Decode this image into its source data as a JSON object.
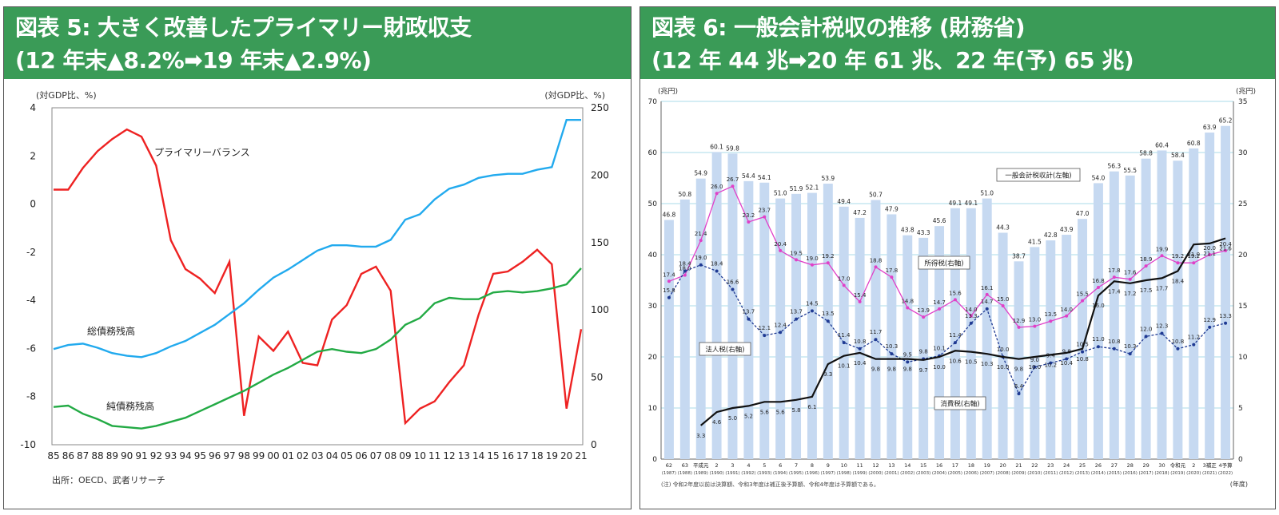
{
  "panel1": {
    "title_line1": "図表 5: 大きく改善したプライマリー財政収支",
    "title_line2": "(12 年末▲8.2%➡19 年末▲2.9%)",
    "left_unit": "(対GDP比、%)",
    "right_unit": "(対GDP比、%)",
    "source": "出所：OECD、武者リサーチ"
  },
  "panel2": {
    "title_line1": "図表 6: 一般会計税収の推移 (財務省)",
    "title_line2": "(12 年 44 兆➡20 年 61 兆、22 年(予) 65 兆)",
    "left_unit": "(兆円)",
    "right_unit": "(兆円)",
    "year_label": "(年度)",
    "footnote": "(注) 令和2年度以前は決算額、令和3年度は補正後予算額、令和4年度は予算額である。"
  },
  "chart_data": [
    {
      "type": "line",
      "x": [
        "85",
        "86",
        "87",
        "88",
        "89",
        "90",
        "91",
        "92",
        "93",
        "94",
        "95",
        "96",
        "97",
        "98",
        "99",
        "00",
        "01",
        "02",
        "03",
        "04",
        "05",
        "06",
        "07",
        "08",
        "09",
        "10",
        "11",
        "12",
        "13",
        "14",
        "15",
        "16",
        "17",
        "18",
        "19",
        "20",
        "21"
      ],
      "ylim_left": [
        -10,
        4
      ],
      "yticks_left": [
        4,
        2,
        0,
        -2,
        -4,
        -6,
        -8,
        -10
      ],
      "ylim_right": [
        0,
        250
      ],
      "yticks_right": [
        250,
        200,
        150,
        100,
        50,
        0
      ],
      "series": [
        {
          "name": "プライマリーバランス",
          "axis": "left",
          "color": "#ee2222",
          "values": [
            0.6,
            0.6,
            1.5,
            2.2,
            2.7,
            3.1,
            2.8,
            1.6,
            -1.5,
            -2.7,
            -3.1,
            -3.7,
            -2.4,
            -8.8,
            -5.5,
            -6.1,
            -5.3,
            -6.6,
            -6.7,
            -4.8,
            -4.2,
            -2.9,
            -2.6,
            -3.6,
            -9.1,
            -8.5,
            -8.2,
            -7.4,
            -6.7,
            -4.6,
            -2.9,
            -2.8,
            -2.4,
            -1.9,
            -2.5,
            -8.5,
            -5.2
          ]
        },
        {
          "name": "総債務残高",
          "axis": "right",
          "color": "#22aaee",
          "values": [
            71,
            74,
            75,
            72,
            68,
            66,
            65,
            68,
            73,
            77,
            83,
            89,
            97,
            105,
            115,
            124,
            130,
            137,
            144,
            148,
            148,
            147,
            147,
            152,
            167,
            171,
            182,
            190,
            193,
            198,
            200,
            201,
            201,
            204,
            206,
            241,
            241
          ]
        },
        {
          "name": "純債務残高",
          "axis": "right",
          "color": "#22aa44",
          "values": [
            28,
            29,
            23,
            19,
            14,
            13,
            12,
            14,
            17,
            20,
            25,
            30,
            35,
            40,
            46,
            52,
            57,
            63,
            69,
            71,
            69,
            68,
            71,
            78,
            89,
            94,
            105,
            109,
            108,
            108,
            113,
            114,
            113,
            114,
            116,
            119,
            131
          ]
        }
      ]
    },
    {
      "type": "bar",
      "categories": [
        "62",
        "63",
        "平成元",
        "2",
        "3",
        "4",
        "5",
        "6",
        "7",
        "8",
        "9",
        "10",
        "11",
        "12",
        "13",
        "14",
        "15",
        "16",
        "17",
        "18",
        "19",
        "20",
        "21",
        "22",
        "23",
        "24",
        "25",
        "26",
        "27",
        "28",
        "29",
        "30",
        "令和元",
        "2",
        "3補正",
        "4予算"
      ],
      "sub_categories": [
        "(1987)",
        "(1988)",
        "(1989)",
        "(1990)",
        "(1991)",
        "(1992)",
        "(1993)",
        "(1994)",
        "(1995)",
        "(1996)",
        "(1997)",
        "(1998)",
        "(1999)",
        "(2000)",
        "(2001)",
        "(2002)",
        "(2003)",
        "(2004)",
        "(2005)",
        "(2006)",
        "(2007)",
        "(2008)",
        "(2009)",
        "(2010)",
        "(2011)",
        "(2012)",
        "(2013)",
        "(2014)",
        "(2015)",
        "(2016)",
        "(2017)",
        "(2018)",
        "(2019)",
        "(2020)",
        "(2021)",
        "(2022)"
      ],
      "ylim_left": [
        0,
        70
      ],
      "yticks_left": [
        70,
        60,
        50,
        40,
        30,
        20,
        10,
        0
      ],
      "ylim_right": [
        0,
        35
      ],
      "yticks_right": [
        35,
        30,
        25,
        20,
        15,
        10,
        5,
        0
      ],
      "series": [
        {
          "name": "一般会計税収計(左軸)",
          "kind": "bar",
          "axis": "left",
          "color": "#c6d9f1",
          "values": [
            46.8,
            50.8,
            54.9,
            60.1,
            59.8,
            54.4,
            54.1,
            51.0,
            51.9,
            52.1,
            53.9,
            49.4,
            47.2,
            50.7,
            47.9,
            43.8,
            43.3,
            45.6,
            49.1,
            49.1,
            51.0,
            44.3,
            38.7,
            41.5,
            42.8,
            43.9,
            47.0,
            54.0,
            56.3,
            55.5,
            58.8,
            60.4,
            58.4,
            60.8,
            63.9,
            65.2
          ]
        },
        {
          "name": "所得税(右軸)",
          "kind": "line",
          "axis": "right",
          "color": "#e040c8",
          "values": [
            17.4,
            18.0,
            21.4,
            26.0,
            26.7,
            23.2,
            23.7,
            20.4,
            19.5,
            19.0,
            19.2,
            17.0,
            15.4,
            18.8,
            17.8,
            14.8,
            13.9,
            14.7,
            15.6,
            14.0,
            16.1,
            15.0,
            12.9,
            13.0,
            13.5,
            14.0,
            15.5,
            16.8,
            17.8,
            17.6,
            18.9,
            19.9,
            19.2,
            19.2,
            20.0,
            20.4
          ]
        },
        {
          "name": "法人税(右軸)",
          "kind": "line",
          "axis": "right",
          "color": "#1f3a93",
          "values": [
            15.8,
            18.4,
            19.0,
            18.4,
            16.6,
            13.7,
            12.1,
            12.4,
            13.7,
            14.5,
            13.5,
            11.4,
            10.8,
            11.7,
            10.3,
            9.5,
            9.8,
            10.1,
            11.4,
            13.3,
            14.7,
            10.0,
            6.4,
            9.0,
            9.4,
            9.8,
            10.5,
            11.0,
            10.8,
            10.3,
            12.0,
            12.3,
            10.8,
            11.2,
            12.9,
            13.3
          ]
        },
        {
          "name": "消費税(右軸)",
          "kind": "line",
          "axis": "right",
          "color": "#111111",
          "start_index": 2,
          "values": [
            null,
            null,
            3.3,
            4.6,
            5.0,
            5.2,
            5.6,
            5.6,
            5.8,
            6.1,
            9.3,
            10.1,
            10.4,
            9.8,
            9.8,
            9.8,
            9.7,
            10.0,
            10.6,
            10.5,
            10.3,
            10.0,
            9.8,
            10.0,
            10.2,
            10.4,
            10.8,
            16.0,
            17.4,
            17.2,
            17.5,
            17.7,
            18.4,
            21.0,
            21.1,
            21.6
          ]
        }
      ]
    }
  ]
}
